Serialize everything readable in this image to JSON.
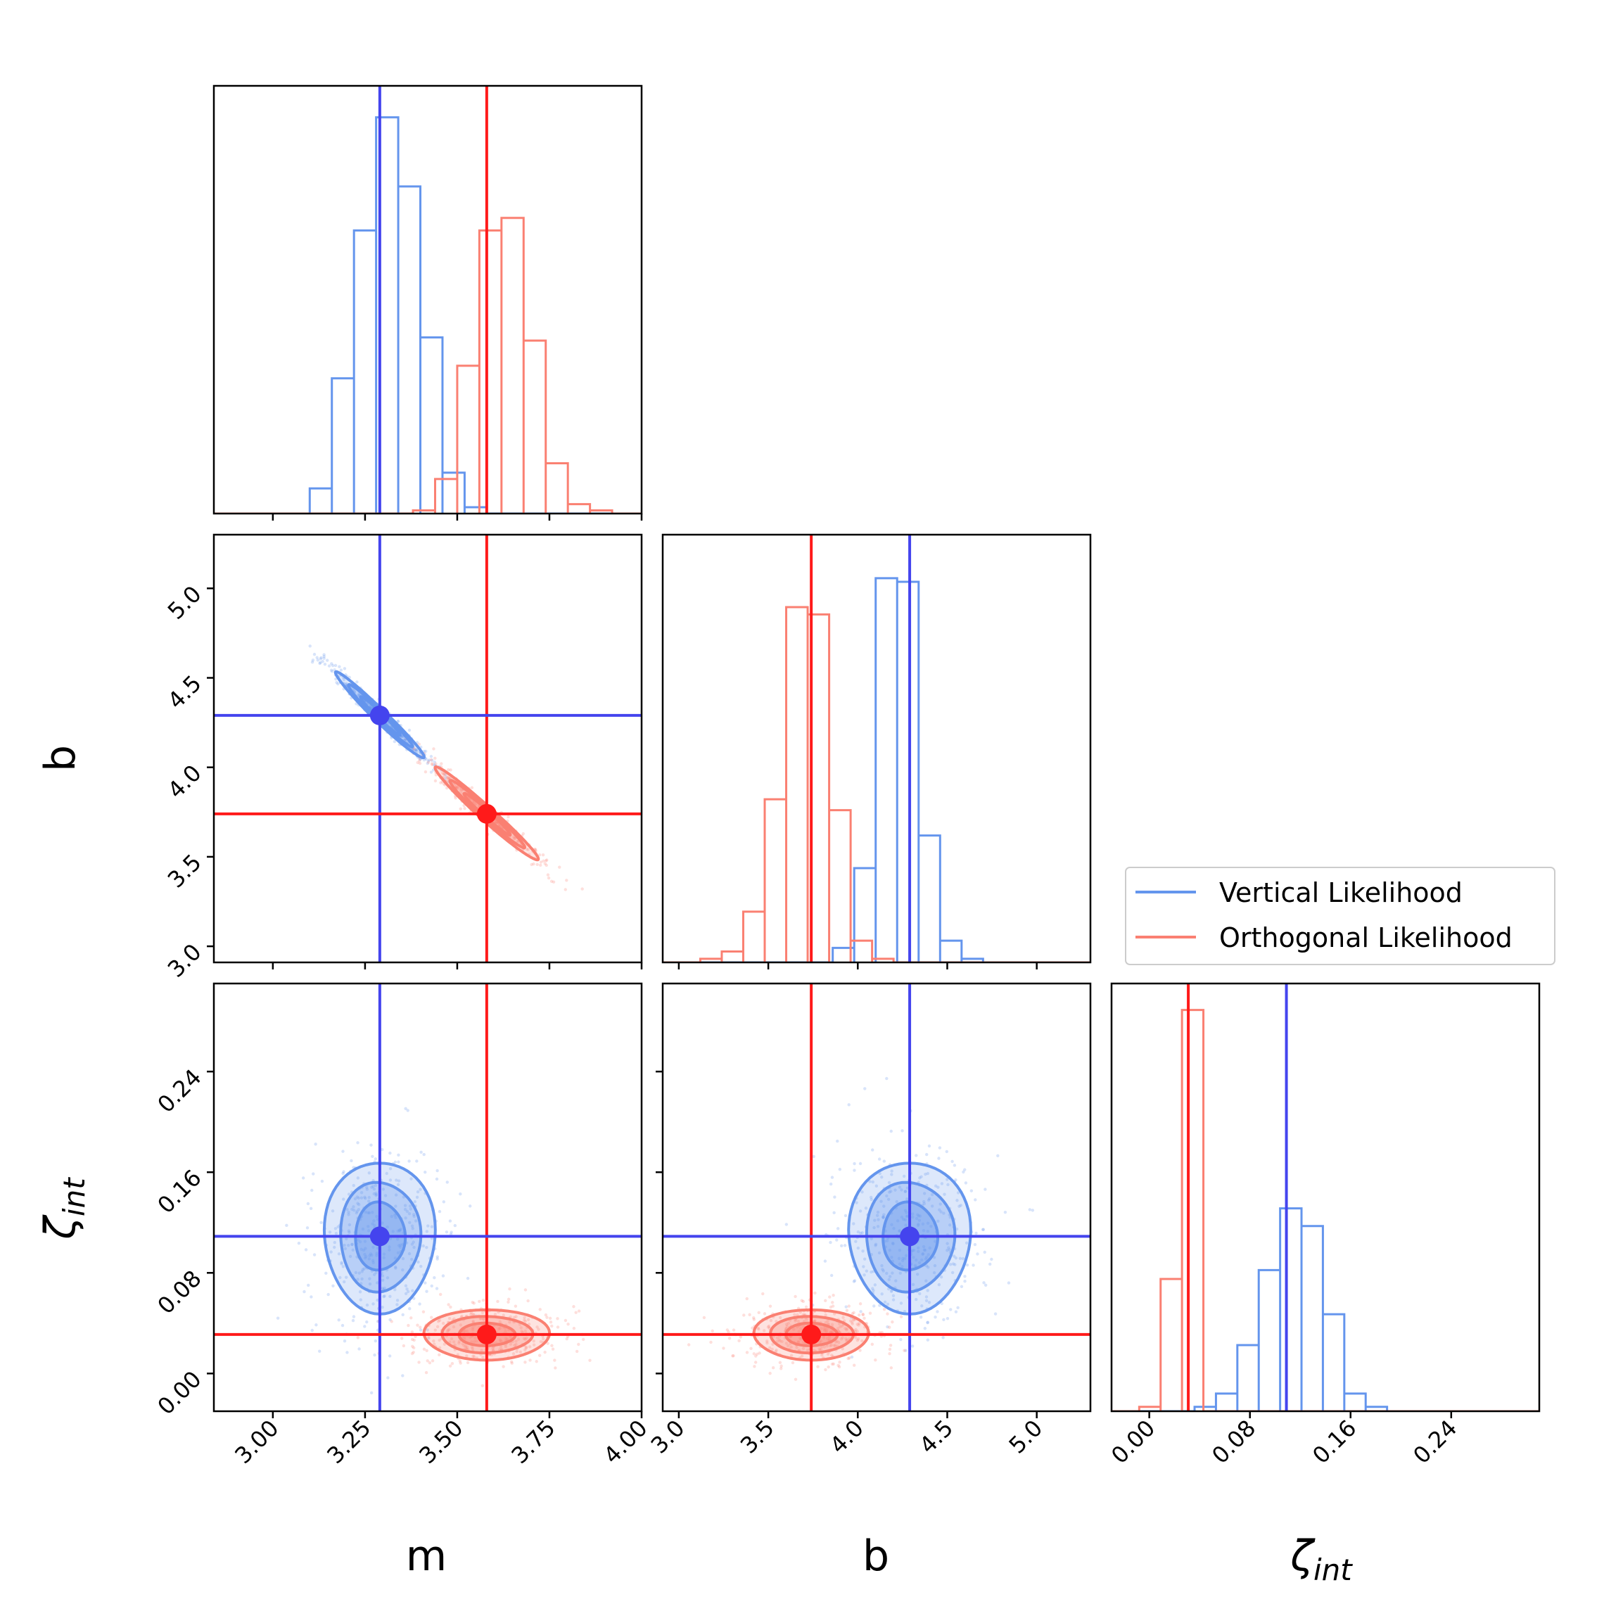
{
  "colors": {
    "vertical": "#6495ed",
    "orthogonal": "#fa8072",
    "vertical_truth": "#4444ee",
    "orthogonal_truth": "#ff1a1a"
  },
  "legend": {
    "entries": [
      {
        "label": "Vertical Likelihood",
        "color": "#6495ed"
      },
      {
        "label": "Orthogonal Likelihood",
        "color": "#fa8072"
      }
    ]
  },
  "chart_data": {
    "type": "corner",
    "parameters": [
      {
        "name": "m",
        "label": "m",
        "range": [
          2.84,
          4.0
        ],
        "ticks": [
          "3.00",
          "3.25",
          "3.50",
          "3.75",
          "4.00"
        ],
        "tick_values": [
          3.0,
          3.25,
          3.5,
          3.75,
          4.0
        ]
      },
      {
        "name": "b",
        "label": "b",
        "range": [
          2.91,
          5.3
        ],
        "ticks": [
          "3.0",
          "3.5",
          "4.0",
          "4.5",
          "5.0"
        ],
        "tick_values": [
          3.0,
          3.5,
          4.0,
          4.5,
          5.0
        ]
      },
      {
        "name": "zeta_int",
        "label": "ζint",
        "label_main": "ζ",
        "label_sub": "int",
        "range": [
          -0.03,
          0.31
        ],
        "ticks": [
          "0.00",
          "0.08",
          "0.16",
          "0.24"
        ],
        "tick_values": [
          0.0,
          0.08,
          0.16,
          0.24
        ]
      }
    ],
    "series": [
      {
        "name": "Vertical Likelihood",
        "color": "#6495ed",
        "truth": {
          "m": 3.29,
          "b": 4.29,
          "zeta_int": 0.109
        },
        "hist": {
          "m": {
            "edges_start": 3.04,
            "edge_step": 0.06,
            "counts": [
              0.0,
              0.08,
              0.43,
              0.9,
              1.26,
              1.04,
              0.56,
              0.13,
              0.02
            ]
          },
          "b": {
            "edges_start": 3.86,
            "edge_step": 0.12,
            "counts": [
              0.04,
              0.26,
              1.06,
              1.05,
              0.35,
              0.06,
              0.01
            ]
          },
          "zeta_int": {
            "edges_start": 0.036,
            "edge_step": 0.017,
            "counts": [
              0.01,
              0.04,
              0.15,
              0.32,
              0.46,
              0.42,
              0.22,
              0.04,
              0.01
            ]
          }
        },
        "contours": {
          "m_b": {
            "center": [
              3.29,
              4.29
            ],
            "corr": -0.98,
            "sd": [
              0.06,
              0.12
            ]
          },
          "m_zeta": {
            "center": [
              3.29,
              0.109
            ],
            "sd": [
              0.075,
              0.03
            ]
          },
          "b_zeta": {
            "center": [
              4.29,
              0.109
            ],
            "sd": [
              0.17,
              0.03
            ]
          }
        }
      },
      {
        "name": "Orthogonal Likelihood",
        "color": "#fa8072",
        "truth": {
          "m": 3.58,
          "b": 3.74,
          "zeta_int": 0.031
        },
        "hist": {
          "m": {
            "edges_start": 3.38,
            "edge_step": 0.06,
            "counts": [
              0.01,
              0.11,
              0.47,
              0.9,
              0.94,
              0.55,
              0.16,
              0.03,
              0.01
            ]
          },
          "b": {
            "edges_start": 3.12,
            "edge_step": 0.12,
            "counts": [
              0.01,
              0.03,
              0.14,
              0.45,
              0.98,
              0.96,
              0.42,
              0.06,
              0.01
            ]
          },
          "zeta_int": {
            "edges_start": -0.008,
            "edge_step": 0.017,
            "counts": [
              0.01,
              0.3,
              0.91,
              0.0
            ]
          }
        },
        "contours": {
          "m_b": {
            "center": [
              3.58,
              3.74
            ],
            "corr": -0.98,
            "sd": [
              0.07,
              0.13
            ]
          },
          "m_zeta": {
            "center": [
              3.58,
              0.031
            ],
            "sd": [
              0.085,
              0.01
            ]
          },
          "b_zeta": {
            "center": [
              3.74,
              0.031
            ],
            "sd": [
              0.16,
              0.01
            ]
          }
        }
      }
    ]
  }
}
